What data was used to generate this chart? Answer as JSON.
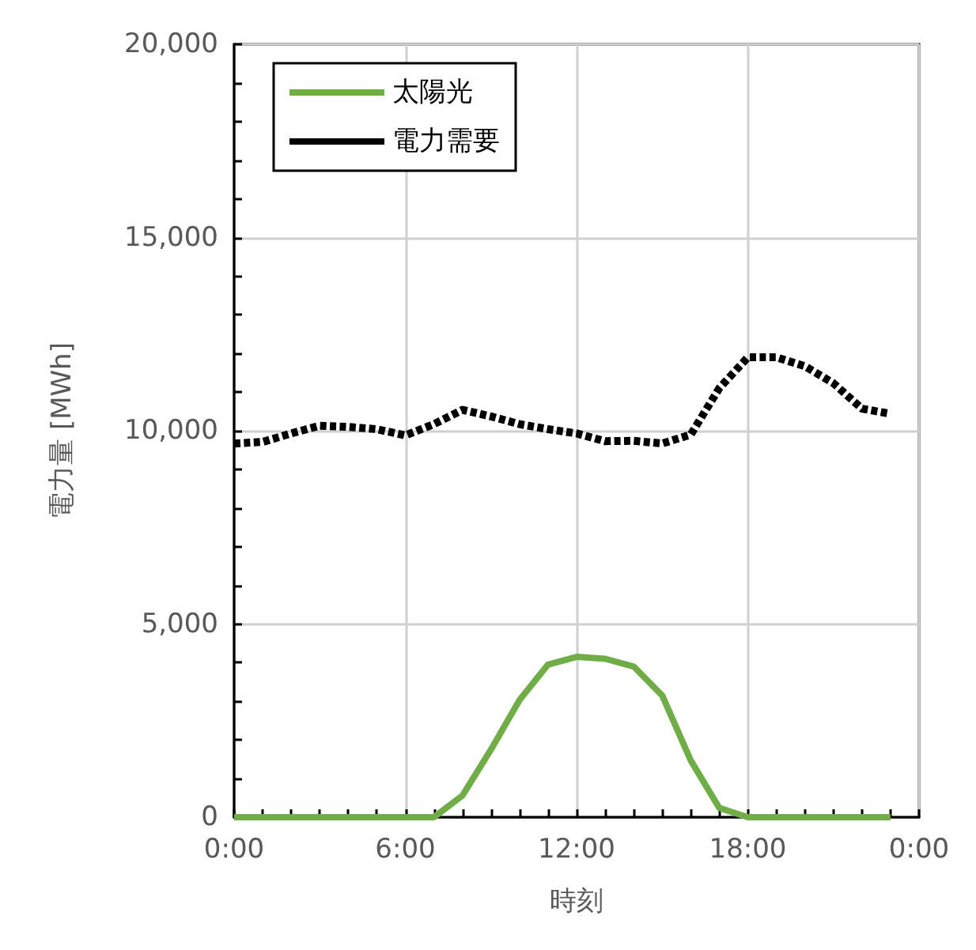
{
  "chart_data": {
    "type": "line",
    "xlabel": "時刻",
    "ylabel": "電力量 [MWh]",
    "x": [
      0,
      1,
      2,
      3,
      4,
      5,
      6,
      7,
      8,
      9,
      10,
      11,
      12,
      13,
      14,
      15,
      16,
      17,
      18,
      19,
      20,
      21,
      22,
      23
    ],
    "series": [
      {
        "name": "太陽光",
        "color": "#70ad47",
        "line_style": "solid",
        "values": [
          0,
          0,
          0,
          0,
          0,
          0,
          0,
          0,
          560,
          1750,
          3030,
          3950,
          4150,
          4100,
          3900,
          3150,
          1470,
          240,
          0,
          0,
          0,
          0,
          0,
          0
        ]
      },
      {
        "name": "電力需要",
        "color": "#000000",
        "line_style": "dashed",
        "values": [
          9670,
          9710,
          9930,
          10130,
          10100,
          10040,
          9880,
          10170,
          10540,
          10370,
          10170,
          10040,
          9930,
          9730,
          9740,
          9670,
          9900,
          11100,
          11900,
          11900,
          11670,
          11230,
          10570,
          10440
        ]
      }
    ],
    "xlim": [
      0,
      24
    ],
    "xticks": [
      {
        "value": 0,
        "label": "0:00"
      },
      {
        "value": 1,
        "label": null
      },
      {
        "value": 2,
        "label": null
      },
      {
        "value": 3,
        "label": null
      },
      {
        "value": 4,
        "label": null
      },
      {
        "value": 5,
        "label": null
      },
      {
        "value": 6,
        "label": "6:00"
      },
      {
        "value": 7,
        "label": null
      },
      {
        "value": 8,
        "label": null
      },
      {
        "value": 9,
        "label": null
      },
      {
        "value": 10,
        "label": null
      },
      {
        "value": 11,
        "label": null
      },
      {
        "value": 12,
        "label": "12:00"
      },
      {
        "value": 13,
        "label": null
      },
      {
        "value": 14,
        "label": null
      },
      {
        "value": 15,
        "label": null
      },
      {
        "value": 16,
        "label": null
      },
      {
        "value": 17,
        "label": null
      },
      {
        "value": 18,
        "label": "18:00"
      },
      {
        "value": 19,
        "label": null
      },
      {
        "value": 20,
        "label": null
      },
      {
        "value": 21,
        "label": null
      },
      {
        "value": 22,
        "label": null
      },
      {
        "value": 23,
        "label": null
      },
      {
        "value": 24,
        "label": "0:00"
      }
    ],
    "ylim": [
      0,
      20000
    ],
    "yticks": [
      {
        "value": 0,
        "label": "0"
      },
      {
        "value": 1000,
        "label": null
      },
      {
        "value": 2000,
        "label": null
      },
      {
        "value": 3000,
        "label": null
      },
      {
        "value": 4000,
        "label": null
      },
      {
        "value": 5000,
        "label": "5,000"
      },
      {
        "value": 6000,
        "label": null
      },
      {
        "value": 7000,
        "label": null
      },
      {
        "value": 8000,
        "label": null
      },
      {
        "value": 9000,
        "label": null
      },
      {
        "value": 10000,
        "label": "10,000"
      },
      {
        "value": 11000,
        "label": null
      },
      {
        "value": 12000,
        "label": null
      },
      {
        "value": 13000,
        "label": null
      },
      {
        "value": 14000,
        "label": null
      },
      {
        "value": 15000,
        "label": "15,000"
      },
      {
        "value": 16000,
        "label": null
      },
      {
        "value": 17000,
        "label": null
      },
      {
        "value": 18000,
        "label": null
      },
      {
        "value": 19000,
        "label": null
      },
      {
        "value": 20000,
        "label": "20,000"
      }
    ],
    "grid": true,
    "legend": "top left",
    "marker": "none"
  }
}
